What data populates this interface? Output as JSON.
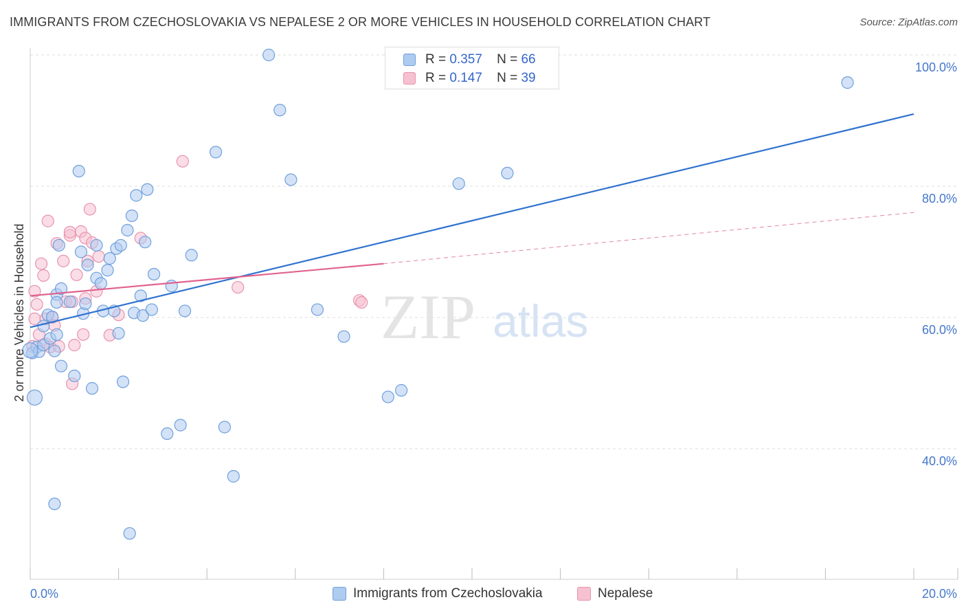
{
  "header": {
    "title": "IMMIGRANTS FROM CZECHOSLOVAKIA VS NEPALESE 2 OR MORE VEHICLES IN HOUSEHOLD CORRELATION CHART",
    "source": "Source: ZipAtlas.com"
  },
  "watermark": {
    "zip": "ZIP",
    "atlas": "atlas"
  },
  "legend_top": {
    "rows": [
      {
        "r_label": "R =",
        "r_value": "0.357",
        "n_label": "N =",
        "n_value": "66"
      },
      {
        "r_label": "R =",
        "r_value": "0.147",
        "n_label": "N =",
        "n_value": "39"
      }
    ]
  },
  "legend_bottom": {
    "items": [
      "Immigrants from Czechoslovakia",
      "Nepalese"
    ]
  },
  "colors": {
    "blue_fill": "#aecbf0",
    "blue_stroke": "#6f9fdc",
    "blue_line": "#2f72d0",
    "pink_fill": "#f6c1d1",
    "pink_stroke": "#e893ae",
    "pink_line": "#e0628f",
    "tick_text": "#4477cc",
    "grid": "#dddddd"
  },
  "chart_data": {
    "type": "scatter",
    "title": "IMMIGRANTS FROM CZECHOSLOVAKIA VS NEPALESE 2 OR MORE VEHICLES IN HOUSEHOLD CORRELATION CHART",
    "xlabel": "",
    "ylabel": "2 or more Vehicles in Household",
    "xlim": [
      0,
      20
    ],
    "ylim": [
      20,
      102
    ],
    "x_tick_labels": [
      "0.0%",
      "20.0%"
    ],
    "y_ticks": [
      40,
      60,
      80,
      100
    ],
    "y_tick_labels": [
      "40.0%",
      "60.0%",
      "80.0%",
      "100.0%"
    ],
    "grid": true,
    "legend_position": "top-center",
    "series": [
      {
        "name": "Immigrants from Czechoslovakia",
        "r": 0.357,
        "n": 66,
        "points": [
          [
            0.05,
            54.6
          ],
          [
            0.1,
            47.8
          ],
          [
            0.15,
            55.5
          ],
          [
            0.2,
            54.8
          ],
          [
            0.3,
            55.8
          ],
          [
            0.3,
            58.7
          ],
          [
            0.4,
            60.4
          ],
          [
            0.45,
            56.8
          ],
          [
            0.5,
            60.1
          ],
          [
            0.55,
            54.9
          ],
          [
            0.55,
            31.6
          ],
          [
            0.6,
            57.4
          ],
          [
            0.6,
            63.5
          ],
          [
            0.65,
            71.0
          ],
          [
            0.7,
            64.4
          ],
          [
            0.7,
            52.6
          ],
          [
            0.6,
            62.3
          ],
          [
            1.0,
            51.1
          ],
          [
            0.9,
            62.4
          ],
          [
            1.1,
            82.3
          ],
          [
            1.15,
            70.0
          ],
          [
            1.2,
            60.6
          ],
          [
            1.25,
            62.1
          ],
          [
            1.3,
            68.0
          ],
          [
            1.4,
            49.2
          ],
          [
            1.5,
            71.0
          ],
          [
            1.5,
            66.0
          ],
          [
            1.6,
            65.2
          ],
          [
            1.65,
            61.0
          ],
          [
            1.75,
            67.2
          ],
          [
            1.8,
            69.0
          ],
          [
            1.9,
            61.0
          ],
          [
            1.95,
            70.5
          ],
          [
            2.0,
            57.6
          ],
          [
            2.05,
            71.0
          ],
          [
            2.1,
            50.2
          ],
          [
            2.2,
            73.3
          ],
          [
            2.25,
            27.1
          ],
          [
            2.3,
            75.5
          ],
          [
            2.35,
            60.7
          ],
          [
            2.4,
            78.6
          ],
          [
            2.5,
            63.3
          ],
          [
            2.55,
            60.3
          ],
          [
            2.6,
            71.5
          ],
          [
            2.65,
            79.5
          ],
          [
            2.75,
            61.2
          ],
          [
            2.8,
            66.6
          ],
          [
            3.2,
            64.8
          ],
          [
            3.1,
            42.3
          ],
          [
            3.4,
            43.6
          ],
          [
            3.5,
            61.0
          ],
          [
            3.65,
            69.5
          ],
          [
            4.2,
            85.2
          ],
          [
            4.4,
            43.3
          ],
          [
            4.6,
            35.8
          ],
          [
            5.4,
            100.0
          ],
          [
            5.65,
            91.6
          ],
          [
            5.9,
            81.0
          ],
          [
            6.5,
            61.2
          ],
          [
            7.1,
            57.1
          ],
          [
            8.1,
            47.9
          ],
          [
            8.4,
            48.9
          ],
          [
            9.7,
            80.4
          ],
          [
            10.8,
            82.0
          ],
          [
            18.5,
            95.8
          ],
          [
            0.0,
            55.0
          ]
        ],
        "trend": {
          "x": [
            0,
            20
          ],
          "y": [
            58.5,
            91.0
          ]
        }
      },
      {
        "name": "Nepalese",
        "r": 0.147,
        "n": 39,
        "points": [
          [
            0.05,
            55.6
          ],
          [
            0.1,
            64.0
          ],
          [
            0.1,
            59.8
          ],
          [
            0.15,
            62.0
          ],
          [
            0.2,
            57.4
          ],
          [
            0.25,
            68.2
          ],
          [
            0.3,
            66.4
          ],
          [
            0.35,
            56.0
          ],
          [
            0.35,
            59.8
          ],
          [
            0.4,
            74.7
          ],
          [
            0.45,
            55.5
          ],
          [
            0.5,
            60.0
          ],
          [
            0.55,
            58.8
          ],
          [
            0.6,
            71.3
          ],
          [
            0.65,
            55.6
          ],
          [
            0.75,
            68.6
          ],
          [
            0.8,
            62.4
          ],
          [
            0.9,
            72.5
          ],
          [
            0.9,
            73.0
          ],
          [
            0.95,
            62.4
          ],
          [
            0.95,
            49.9
          ],
          [
            1.0,
            55.8
          ],
          [
            1.05,
            66.5
          ],
          [
            1.15,
            73.1
          ],
          [
            1.2,
            57.4
          ],
          [
            1.25,
            62.9
          ],
          [
            1.25,
            72.1
          ],
          [
            1.3,
            68.6
          ],
          [
            1.35,
            76.5
          ],
          [
            1.4,
            71.4
          ],
          [
            1.5,
            64.0
          ],
          [
            1.55,
            69.3
          ],
          [
            1.8,
            57.3
          ],
          [
            2.0,
            60.4
          ],
          [
            2.5,
            72.1
          ],
          [
            3.45,
            83.8
          ],
          [
            4.7,
            64.6
          ],
          [
            7.45,
            62.6
          ],
          [
            7.5,
            62.3
          ]
        ],
        "trend": {
          "x": [
            0,
            8.0
          ],
          "y": [
            63.3,
            68.2
          ]
        },
        "trend_extension": {
          "x": [
            8.0,
            20
          ],
          "y": [
            68.2,
            76.0
          ]
        }
      }
    ]
  }
}
